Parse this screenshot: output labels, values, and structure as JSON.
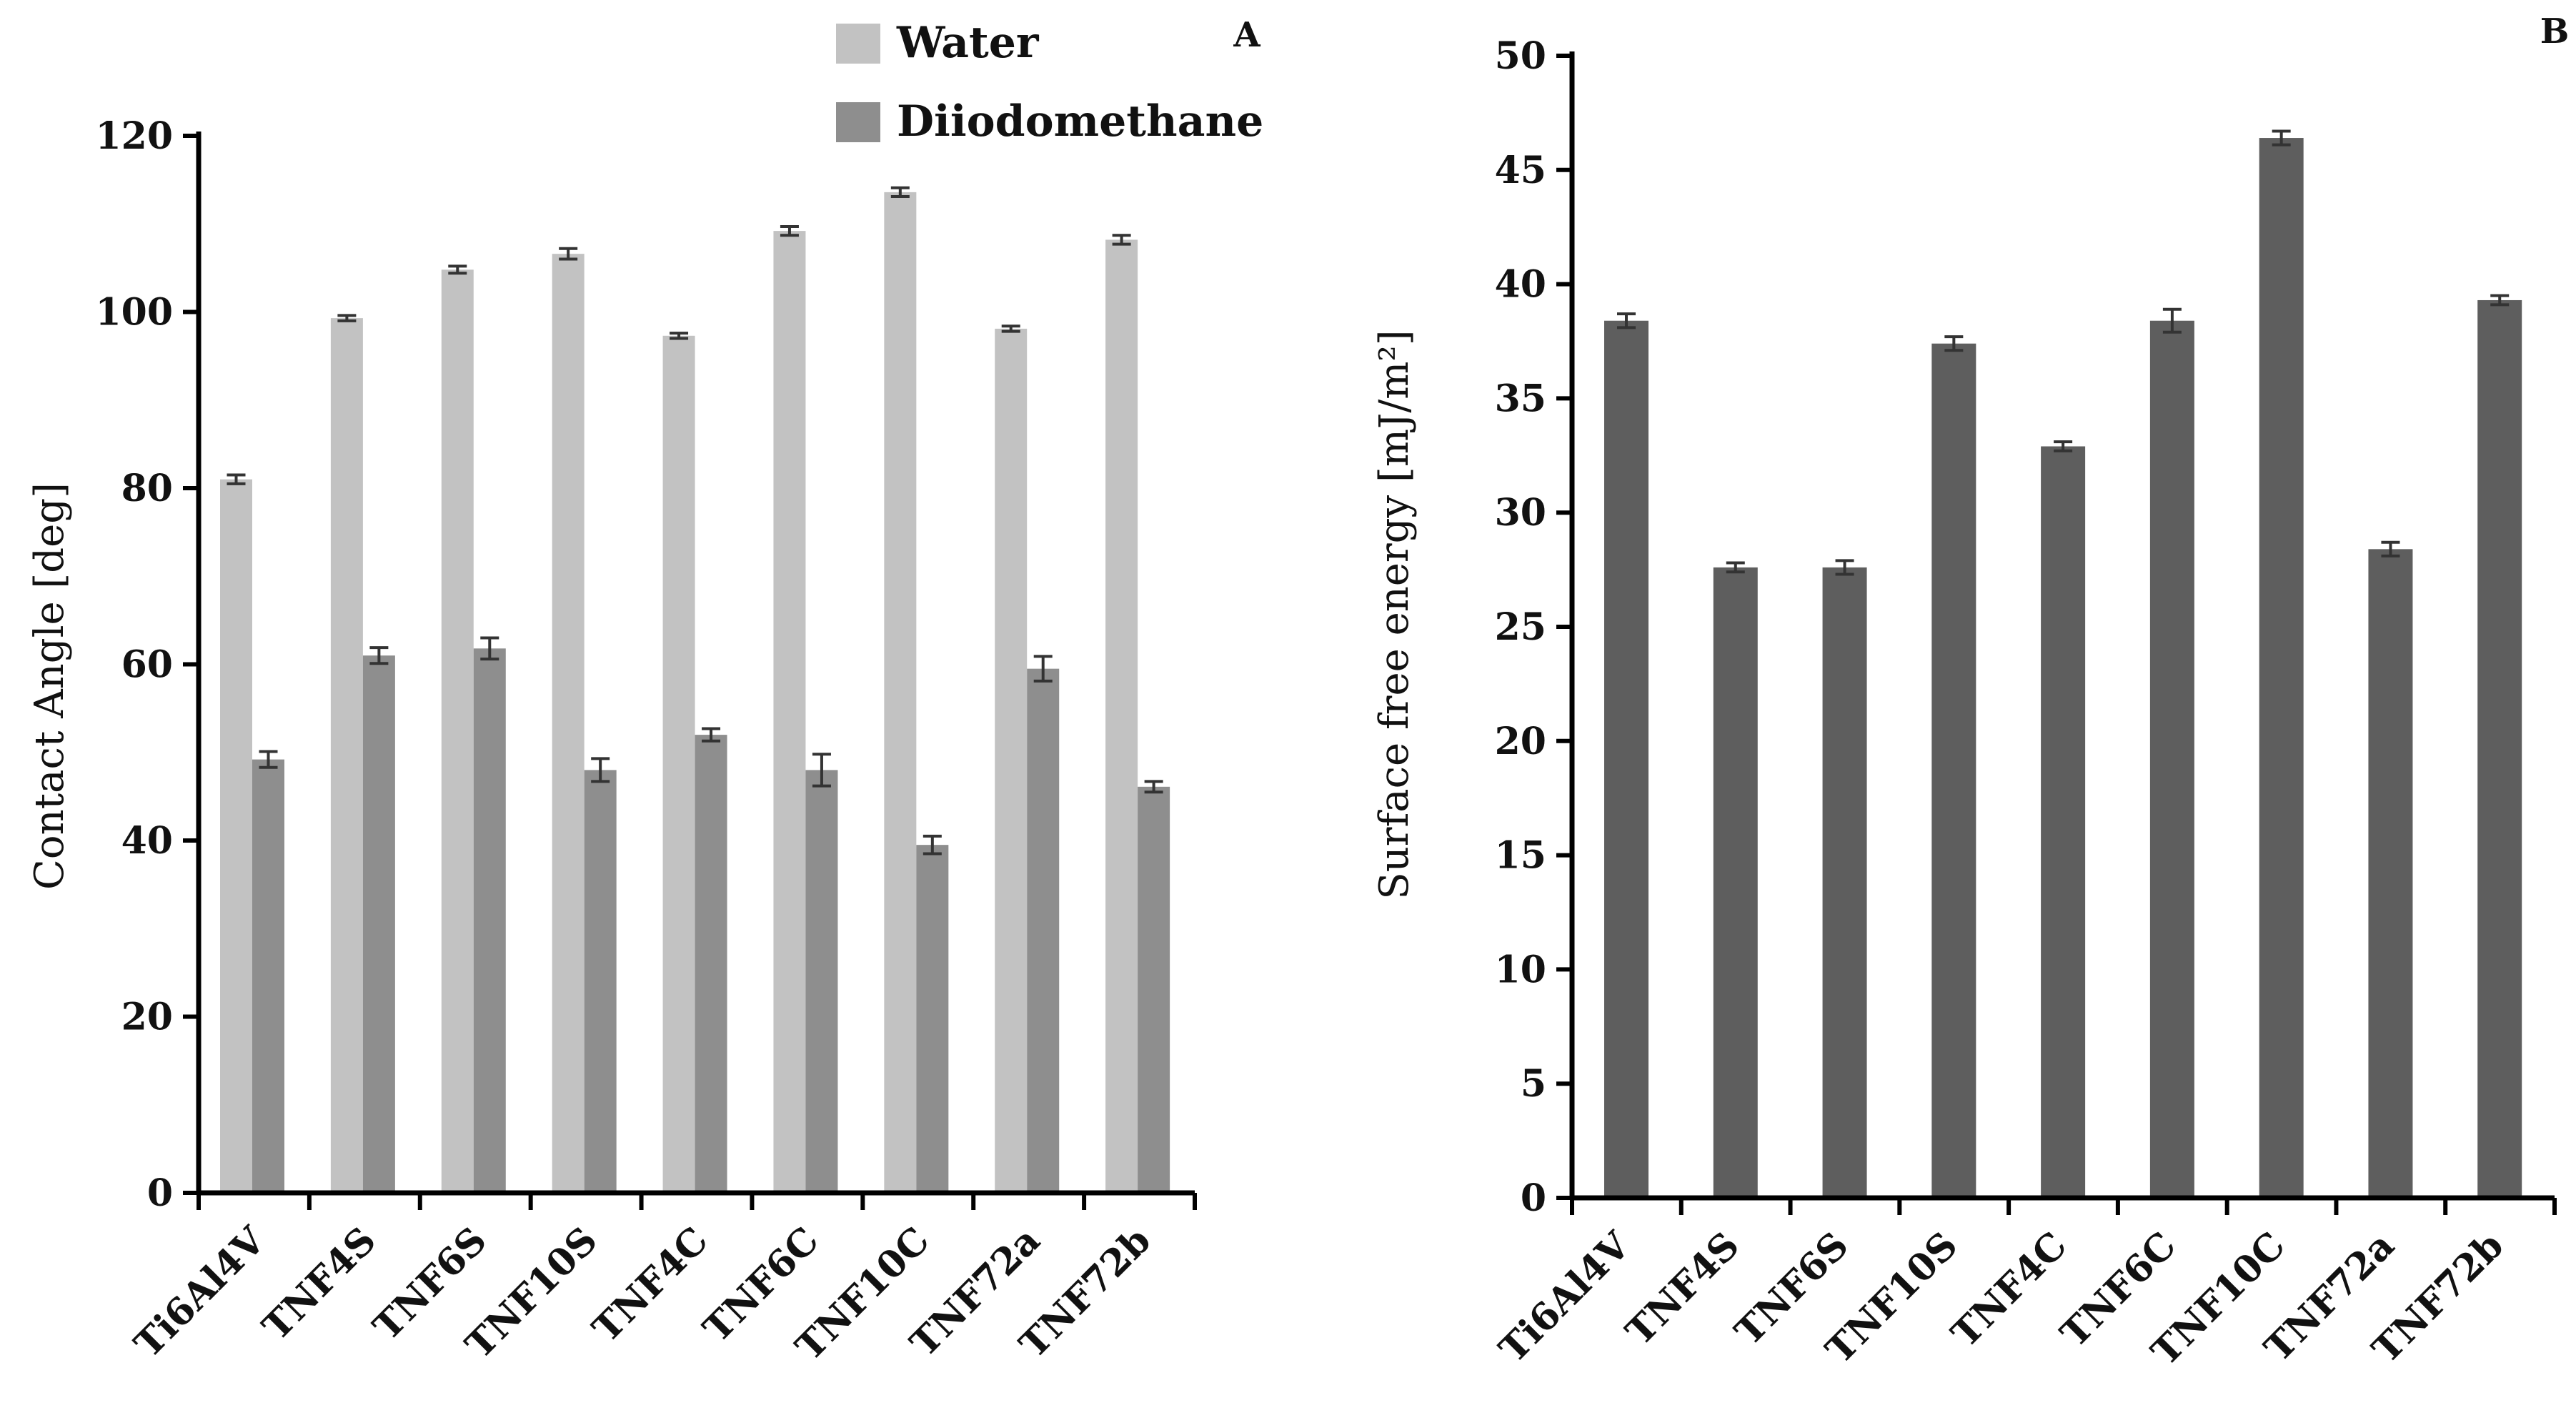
{
  "chart_data": [
    {
      "type": "bar",
      "panel_label": "A",
      "title": "",
      "xlabel": "",
      "ylabel": "Contact Angle [deg]",
      "ylim": [
        0,
        120
      ],
      "yticks": [
        0,
        20,
        40,
        60,
        80,
        100,
        120
      ],
      "legend_position": "top-right",
      "categories": [
        "Ti6Al4V",
        "TNF4S",
        "TNF6S",
        "TNF10S",
        "TNF4C",
        "TNF6C",
        "TNF10C",
        "TNF72a",
        "TNF72b"
      ],
      "series": [
        {
          "name": "Water",
          "color": "#c2c2c2",
          "values": [
            81,
            99.3,
            104.8,
            106.6,
            97.3,
            109.2,
            113.6,
            98.1,
            108.2
          ],
          "errors": [
            0.5,
            0.3,
            0.4,
            0.6,
            0.3,
            0.5,
            0.5,
            0.3,
            0.5
          ]
        },
        {
          "name": "Diiodomethane",
          "color": "#8e8e8e",
          "values": [
            49.2,
            61,
            61.8,
            48,
            52,
            48,
            39.5,
            59.5,
            46.1
          ],
          "errors": [
            0.9,
            0.9,
            1.2,
            1.3,
            0.7,
            1.8,
            1.0,
            1.4,
            0.6
          ]
        }
      ]
    },
    {
      "type": "bar",
      "panel_label": "B",
      "title": "",
      "xlabel": "",
      "ylabel": "Surface free energy [mJ/m²]",
      "ylim": [
        0,
        50
      ],
      "yticks": [
        0,
        5,
        10,
        15,
        20,
        25,
        30,
        35,
        40,
        45,
        50
      ],
      "categories": [
        "Ti6Al4V",
        "TNF4S",
        "TNF6S",
        "TNF10S",
        "TNF4C",
        "TNF6C",
        "TNF10C",
        "TNF72a",
        "TNF72b"
      ],
      "series": [
        {
          "name": "Surface free energy",
          "color": "#5e5e5e",
          "values": [
            38.4,
            27.6,
            27.6,
            37.4,
            32.9,
            38.4,
            46.4,
            28.4,
            39.3
          ],
          "errors": [
            0.3,
            0.2,
            0.3,
            0.3,
            0.2,
            0.5,
            0.3,
            0.3,
            0.2
          ]
        }
      ]
    }
  ]
}
